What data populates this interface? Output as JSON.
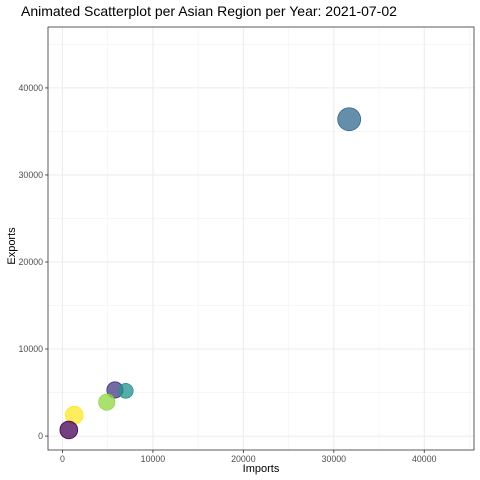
{
  "chart_data": {
    "type": "scatter",
    "title": "Animated Scatterplot per Asian Region per Year: 2021-07-02",
    "xlabel": "Imports",
    "ylabel": "Exports",
    "xlim": [
      -1600,
      45500
    ],
    "ylim": [
      -1600,
      47000
    ],
    "x_ticks": [
      0,
      10000,
      20000,
      30000,
      40000
    ],
    "x_tick_labels": [
      "0",
      "10000",
      "20000",
      "30000",
      "40000"
    ],
    "y_ticks": [
      0,
      10000,
      20000,
      30000,
      40000
    ],
    "y_tick_labels": [
      "0",
      "10000",
      "20000",
      "30000",
      "40000"
    ],
    "grid": true,
    "legend": "none",
    "points": [
      {
        "x": 31700,
        "y": 36400,
        "size": 1.0,
        "color": "#31688e"
      },
      {
        "x": 5800,
        "y": 5300,
        "size": 0.55,
        "color": "#443983"
      },
      {
        "x": 7000,
        "y": 5200,
        "size": 0.45,
        "color": "#21918c"
      },
      {
        "x": 4900,
        "y": 3900,
        "size": 0.55,
        "color": "#90d743"
      },
      {
        "x": 1300,
        "y": 2400,
        "size": 0.65,
        "color": "#fde725"
      },
      {
        "x": 700,
        "y": 700,
        "size": 0.65,
        "color": "#440154"
      }
    ]
  }
}
